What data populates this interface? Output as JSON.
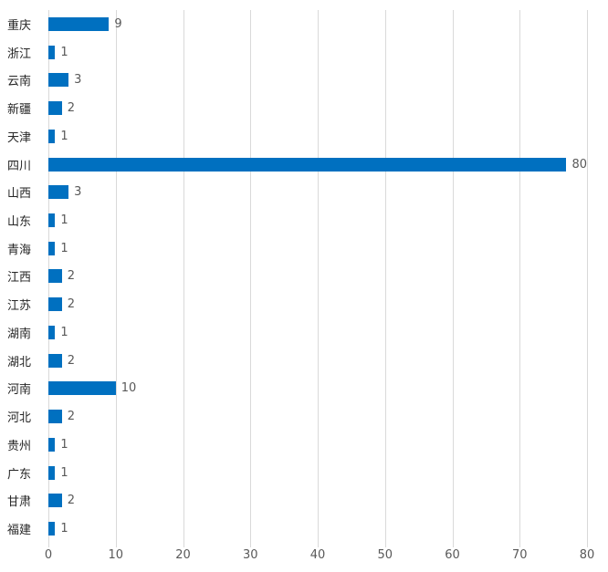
{
  "chart_data": {
    "type": "bar",
    "orientation": "horizontal",
    "title": "",
    "xlabel": "",
    "ylabel": "",
    "categories": [
      "重庆",
      "浙江",
      "云南",
      "新疆",
      "天津",
      "四川",
      "山西",
      "山东",
      "青海",
      "江西",
      "江苏",
      "湖南",
      "湖北",
      "河南",
      "河北",
      "贵州",
      "广东",
      "甘肃",
      "福建"
    ],
    "values": [
      9,
      1,
      3,
      2,
      1,
      80,
      3,
      1,
      1,
      2,
      2,
      1,
      2,
      10,
      2,
      1,
      1,
      2,
      1
    ],
    "data_labels_shown": true,
    "xlim": [
      0,
      80
    ],
    "x_ticks": [
      0,
      10,
      20,
      30,
      40,
      50,
      60,
      70,
      80
    ],
    "grid": "vertical",
    "legend": "none",
    "colors": {
      "bar": "#0070c0",
      "gridline": "#d9d9d9",
      "value_label": "#595959",
      "tick_label": "#595959",
      "category_label": "#262626",
      "background": "#ffffff"
    }
  }
}
